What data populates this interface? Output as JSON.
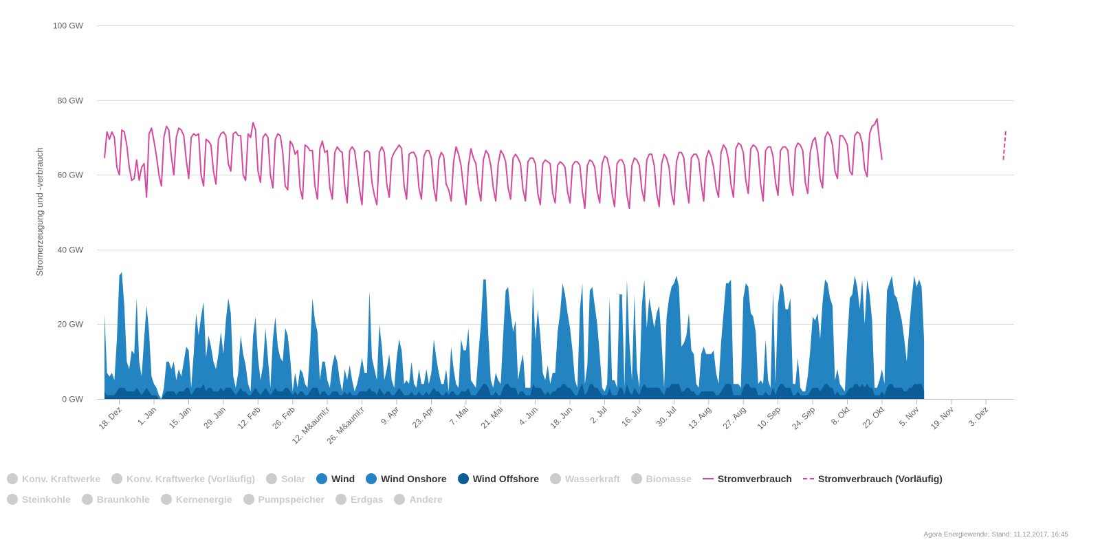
{
  "chart_data": {
    "type": "area",
    "ylabel": "Stromerzeugung und -verbrauch",
    "ylim": [
      0,
      100
    ],
    "y_ticks": [
      "0 GW",
      "20 GW",
      "40 GW",
      "60 GW",
      "80 GW",
      "100 GW"
    ],
    "y_tick_values": [
      0,
      20,
      40,
      60,
      80,
      100
    ],
    "x_start_date": "2016-12-12",
    "x_end_date": "2017-12-11",
    "x_tick_labels": [
      "18. Dez",
      "1. Jan",
      "15. Jan",
      "29. Jan",
      "12. Feb",
      "26. Feb",
      "12. M&auml;r",
      "26. M&auml;r",
      "9. Apr",
      "23. Apr",
      "7. Mai",
      "21. Mai",
      "4. Jun",
      "18. Jun",
      "2. Jul",
      "16. Jul",
      "30. Jul",
      "13. Aug",
      "27. Aug",
      "10. Sep",
      "24. Sep",
      "8. Okt",
      "22. Okt",
      "5. Nov",
      "19. Nov",
      "3. Dez"
    ],
    "x_tick_dates": [
      "2016-12-18",
      "2017-01-01",
      "2017-01-15",
      "2017-01-29",
      "2017-02-12",
      "2017-02-26",
      "2017-03-12",
      "2017-03-26",
      "2017-04-09",
      "2017-04-23",
      "2017-05-07",
      "2017-05-21",
      "2017-06-04",
      "2017-06-18",
      "2017-07-02",
      "2017-07-16",
      "2017-07-30",
      "2017-08-13",
      "2017-08-27",
      "2017-09-10",
      "2017-09-24",
      "2017-10-08",
      "2017-10-22",
      "2017-11-05",
      "2017-11-19",
      "2017-12-03"
    ],
    "series": [
      {
        "name": "Wind Onshore",
        "type": "area",
        "color": "#2484c1",
        "date_range": [
          "2016-12-12",
          "2017-12-11"
        ],
        "samples_per_day": 1,
        "approx_values_gw": [
          21,
          6,
          5,
          6,
          4,
          14,
          30,
          31,
          22,
          8,
          6,
          11,
          10,
          24,
          8,
          5,
          14,
          22,
          16,
          5,
          3,
          2,
          1,
          0,
          2,
          8,
          8,
          6,
          8,
          4,
          6,
          4,
          8,
          11,
          10,
          2,
          10,
          20,
          14,
          19,
          22,
          9,
          14,
          11,
          8,
          6,
          10,
          15,
          10,
          18,
          24,
          20,
          4,
          2,
          5,
          14,
          10,
          7,
          3,
          1,
          15,
          19,
          9,
          4,
          7,
          16,
          9,
          2,
          14,
          19,
          12,
          9,
          8,
          16,
          14,
          9,
          1,
          5,
          2,
          6,
          5,
          3,
          2,
          11,
          24,
          18,
          15,
          4,
          8,
          8,
          4,
          2,
          7,
          10,
          8,
          4,
          1,
          6,
          4,
          7,
          4,
          1,
          3,
          5,
          9,
          5,
          5,
          26,
          9,
          6,
          4,
          17,
          12,
          4,
          6,
          10,
          4,
          2,
          9,
          13,
          11,
          3,
          4,
          3,
          8,
          3,
          2,
          6,
          3,
          3,
          6,
          3,
          5,
          13,
          9,
          5,
          3,
          3,
          6,
          1,
          12,
          6,
          3,
          2,
          14,
          11,
          11,
          16,
          4,
          3,
          2,
          10,
          17,
          28,
          28,
          14,
          4,
          2,
          5,
          4,
          3,
          14,
          25,
          26,
          20,
          15,
          18,
          4,
          7,
          10,
          2,
          2,
          2,
          26,
          13,
          21,
          14,
          5,
          4,
          7,
          3,
          5,
          5,
          15,
          20,
          27,
          24,
          20,
          16,
          11,
          4,
          2,
          21,
          27,
          3,
          7,
          25,
          26,
          22,
          17,
          10,
          2,
          1,
          3,
          24,
          4,
          4,
          2,
          25,
          25,
          2,
          28,
          13,
          4,
          25,
          6,
          2,
          22,
          28,
          16,
          24,
          20,
          16,
          20,
          22,
          13,
          2,
          19,
          24,
          26,
          27,
          29,
          26,
          12,
          13,
          14,
          20,
          11,
          10,
          3,
          2,
          10,
          12,
          10,
          10,
          10,
          11,
          6,
          3,
          13,
          20,
          27,
          27,
          28,
          3,
          3,
          3,
          2,
          24,
          27,
          26,
          20,
          19,
          15,
          3,
          4,
          3,
          14,
          4,
          2,
          26,
          3,
          22,
          27,
          26,
          21,
          21,
          24,
          3,
          3,
          9,
          2,
          1,
          1,
          5,
          11,
          19,
          18,
          20,
          14,
          23,
          28,
          27,
          24,
          22,
          4,
          6,
          3,
          2,
          1,
          14,
          24,
          25,
          29,
          26,
          21,
          28,
          17,
          28,
          25,
          18,
          2,
          2,
          4,
          6,
          3,
          26,
          27,
          29,
          25,
          24,
          21,
          18,
          14,
          8,
          16,
          24,
          29,
          26,
          28,
          26,
          14
        ]
      },
      {
        "name": "Wind Offshore",
        "type": "area",
        "color": "#0b5c97",
        "date_range": [
          "2016-12-12",
          "2017-12-11"
        ],
        "samples_per_day": 1,
        "approx_values_gw": [
          2,
          1,
          1,
          1,
          1,
          2,
          3,
          3,
          3,
          2,
          2,
          2,
          2,
          3,
          2,
          1,
          2,
          3,
          2,
          1,
          1,
          1,
          0,
          0,
          1,
          2,
          2,
          2,
          2,
          1,
          2,
          2,
          2,
          3,
          3,
          1,
          2,
          3,
          3,
          3,
          4,
          2,
          3,
          3,
          2,
          2,
          2,
          3,
          2,
          3,
          3,
          3,
          2,
          1,
          2,
          3,
          2,
          2,
          1,
          1,
          2,
          3,
          2,
          1,
          2,
          3,
          2,
          1,
          2,
          3,
          2,
          2,
          2,
          3,
          3,
          2,
          1,
          2,
          1,
          2,
          2,
          1,
          1,
          2,
          3,
          3,
          3,
          1,
          2,
          2,
          1,
          1,
          2,
          2,
          2,
          1,
          1,
          2,
          1,
          2,
          1,
          1,
          1,
          2,
          2,
          2,
          2,
          3,
          2,
          2,
          1,
          3,
          2,
          1,
          2,
          2,
          1,
          1,
          2,
          3,
          2,
          1,
          1,
          1,
          2,
          1,
          1,
          2,
          1,
          1,
          2,
          1,
          2,
          3,
          2,
          2,
          1,
          1,
          2,
          1,
          2,
          2,
          1,
          1,
          2,
          2,
          2,
          3,
          1,
          1,
          1,
          2,
          3,
          4,
          4,
          3,
          1,
          1,
          2,
          1,
          1,
          3,
          4,
          4,
          3,
          3,
          3,
          1,
          2,
          2,
          1,
          1,
          1,
          4,
          3,
          3,
          3,
          2,
          1,
          2,
          1,
          2,
          2,
          3,
          3,
          4,
          4,
          3,
          3,
          2,
          1,
          1,
          3,
          4,
          1,
          2,
          4,
          4,
          3,
          3,
          2,
          1,
          1,
          1,
          3,
          1,
          1,
          1,
          3,
          3,
          1,
          4,
          2,
          1,
          3,
          2,
          1,
          3,
          4,
          3,
          3,
          3,
          3,
          3,
          3,
          2,
          1,
          3,
          3,
          4,
          4,
          4,
          4,
          2,
          2,
          3,
          3,
          2,
          2,
          1,
          1,
          2,
          2,
          2,
          2,
          2,
          2,
          1,
          1,
          2,
          3,
          4,
          4,
          4,
          1,
          1,
          1,
          1,
          3,
          4,
          4,
          3,
          3,
          3,
          1,
          1,
          1,
          2,
          1,
          1,
          3,
          1,
          3,
          4,
          4,
          3,
          3,
          3,
          1,
          1,
          2,
          1,
          1,
          1,
          1,
          2,
          3,
          3,
          3,
          2,
          3,
          4,
          4,
          3,
          3,
          1,
          2,
          1,
          1,
          1,
          2,
          3,
          3,
          4,
          4,
          3,
          4,
          3,
          4,
          3,
          3,
          1,
          1,
          1,
          2,
          1,
          3,
          4,
          4,
          3,
          3,
          3,
          3,
          2,
          2,
          3,
          3,
          4,
          4,
          4,
          4,
          2
        ]
      },
      {
        "name": "Stromverbrauch",
        "type": "line",
        "color": "#d6479e",
        "date_range": [
          "2016-12-12",
          "2017-12-11"
        ],
        "samples_per_day": 1,
        "approx_values_gw": [
          64.5,
          71.5,
          69.5,
          71.5,
          70.0,
          62.0,
          60.0,
          72.0,
          71.5,
          68.0,
          62.0,
          58.5,
          59.0,
          64.0,
          58.5,
          62.0,
          63.0,
          54.0,
          71.0,
          72.5,
          69.0,
          65.0,
          60.0,
          57.0,
          70.0,
          73.0,
          72.0,
          65.0,
          60.0,
          70.0,
          72.5,
          72.0,
          70.5,
          64.0,
          59.0,
          70.0,
          71.0,
          70.5,
          71.0,
          60.0,
          57.0,
          69.5,
          69.0,
          68.0,
          61.0,
          57.5,
          69.5,
          71.0,
          71.5,
          70.5,
          63.0,
          61.0,
          71.0,
          71.5,
          70.5,
          70.5,
          60.0,
          58.5,
          71.0,
          70.0,
          74.0,
          72.0,
          61.0,
          58.0,
          70.0,
          71.0,
          70.0,
          60.0,
          56.5,
          69.5,
          71.0,
          70.5,
          66.0,
          57.0,
          56.0,
          69.0,
          68.0,
          65.5,
          66.5,
          56.5,
          53.5,
          68.0,
          67.5,
          66.5,
          66.5,
          57.0,
          53.5,
          67.0,
          69.0,
          66.0,
          66.5,
          56.5,
          53.5,
          66.0,
          67.5,
          66.5,
          66.0,
          57.0,
          52.5,
          66.5,
          67.5,
          66.5,
          61.5,
          56.0,
          52.0,
          66.0,
          66.5,
          66.0,
          58.0,
          54.5,
          52.0,
          66.0,
          67.5,
          66.0,
          57.5,
          54.0,
          64.5,
          66.0,
          67.0,
          68.0,
          67.0,
          57.0,
          53.5,
          65.5,
          66.0,
          66.0,
          64.5,
          56.5,
          53.5,
          65.0,
          66.5,
          66.5,
          64.5,
          56.5,
          53.0,
          64.0,
          66.0,
          65.0,
          57.5,
          56.0,
          53.0,
          63.5,
          67.5,
          65.5,
          62.5,
          56.5,
          52.0,
          62.5,
          67.0,
          64.5,
          63.0,
          56.5,
          53.0,
          64.0,
          66.5,
          65.5,
          62.5,
          56.5,
          53.0,
          63.0,
          66.5,
          65.5,
          63.5,
          56.5,
          53.5,
          64.5,
          65.5,
          64.5,
          63.0,
          56.0,
          53.0,
          63.5,
          64.5,
          64.5,
          63.0,
          55.0,
          52.0,
          63.0,
          64.0,
          63.5,
          63.0,
          55.0,
          52.5,
          62.5,
          63.5,
          63.0,
          62.0,
          55.5,
          52.5,
          62.5,
          63.5,
          63.5,
          62.5,
          55.5,
          51.0,
          62.5,
          64.0,
          63.5,
          62.0,
          55.5,
          52.5,
          63.0,
          65.0,
          64.5,
          61.5,
          55.0,
          51.5,
          63.0,
          64.0,
          64.0,
          62.5,
          54.5,
          51.0,
          62.5,
          64.5,
          64.0,
          62.5,
          56.0,
          53.0,
          64.0,
          65.5,
          65.5,
          62.5,
          55.0,
          51.5,
          63.0,
          65.5,
          64.5,
          62.0,
          55.0,
          52.0,
          63.5,
          66.0,
          66.0,
          64.5,
          57.0,
          52.5,
          64.5,
          65.5,
          65.5,
          64.0,
          57.5,
          53.0,
          64.5,
          66.5,
          65.0,
          62.0,
          56.5,
          54.0,
          66.0,
          68.0,
          67.0,
          64.0,
          57.5,
          54.0,
          67.0,
          68.5,
          68.0,
          66.0,
          58.5,
          55.0,
          67.0,
          68.0,
          67.5,
          66.0,
          57.5,
          53.0,
          66.5,
          67.5,
          67.5,
          65.0,
          58.0,
          54.5,
          66.5,
          67.5,
          67.5,
          66.5,
          57.5,
          54.5,
          67.0,
          68.5,
          68.0,
          66.5,
          58.0,
          55.0,
          66.0,
          69.0,
          70.0,
          66.0,
          59.0,
          56.5,
          70.0,
          71.5,
          70.5,
          68.0,
          61.0,
          59.0,
          70.5,
          70.5,
          69.5,
          68.0,
          61.0,
          60.0,
          70.5,
          71.5,
          71.0,
          68.5,
          61.5,
          59.5,
          71.0,
          73.0,
          73.5,
          75.0,
          69.0,
          64.0
        ]
      },
      {
        "name": "Stromverbrauch (Vorläufig)",
        "type": "line",
        "dashed": true,
        "color": "#d6479e",
        "date_range": [
          "2017-12-10",
          "2017-12-11"
        ],
        "samples_per_day": 1,
        "approx_values_gw": [
          64.0,
          72.0
        ]
      }
    ]
  },
  "legend": {
    "rows": [
      [
        {
          "label": "Konv. Kraftwerke",
          "symbol": "dot",
          "color": "#cccccc",
          "active": false
        },
        {
          "label": "Konv. Kraftwerke (Vorläufig)",
          "symbol": "dot",
          "color": "#cccccc",
          "active": false
        },
        {
          "label": "Solar",
          "symbol": "dot",
          "color": "#cccccc",
          "active": false
        },
        {
          "label": "Wind",
          "symbol": "dot",
          "color": "#2484c1",
          "active": true
        },
        {
          "label": "Wind Onshore",
          "symbol": "dot",
          "color": "#2484c1",
          "active": true
        },
        {
          "label": "Wind Offshore",
          "symbol": "dot",
          "color": "#0b5c97",
          "active": true
        },
        {
          "label": "Wasserkraft",
          "symbol": "dot",
          "color": "#cccccc",
          "active": false
        },
        {
          "label": "Biomasse",
          "symbol": "dot",
          "color": "#cccccc",
          "active": false
        },
        {
          "label": "Stromverbrauch",
          "symbol": "line",
          "color": "#d6479e",
          "active": true
        },
        {
          "label": "Stromverbrauch (Vorläufig)",
          "symbol": "dashed-line",
          "color": "#d6479e",
          "active": true
        }
      ],
      [
        {
          "label": "Steinkohle",
          "symbol": "dot",
          "color": "#cccccc",
          "active": false
        },
        {
          "label": "Braunkohle",
          "symbol": "dot",
          "color": "#cccccc",
          "active": false
        },
        {
          "label": "Kernenergie",
          "symbol": "dot",
          "color": "#cccccc",
          "active": false
        },
        {
          "label": "Pumpspeicher",
          "symbol": "dot",
          "color": "#cccccc",
          "active": false
        },
        {
          "label": "Erdgas",
          "symbol": "dot",
          "color": "#cccccc",
          "active": false
        },
        {
          "label": "Andere",
          "symbol": "dot",
          "color": "#cccccc",
          "active": false
        }
      ]
    ]
  },
  "credits": "Agora Energiewende; Stand: 11.12.2017, 16:45",
  "colors": {
    "wind_onshore": "#2484c1",
    "wind_offshore": "#0b5c97",
    "consumption": "#d6479e",
    "grid": "#d8d8d8",
    "inactive": "#cccccc"
  }
}
